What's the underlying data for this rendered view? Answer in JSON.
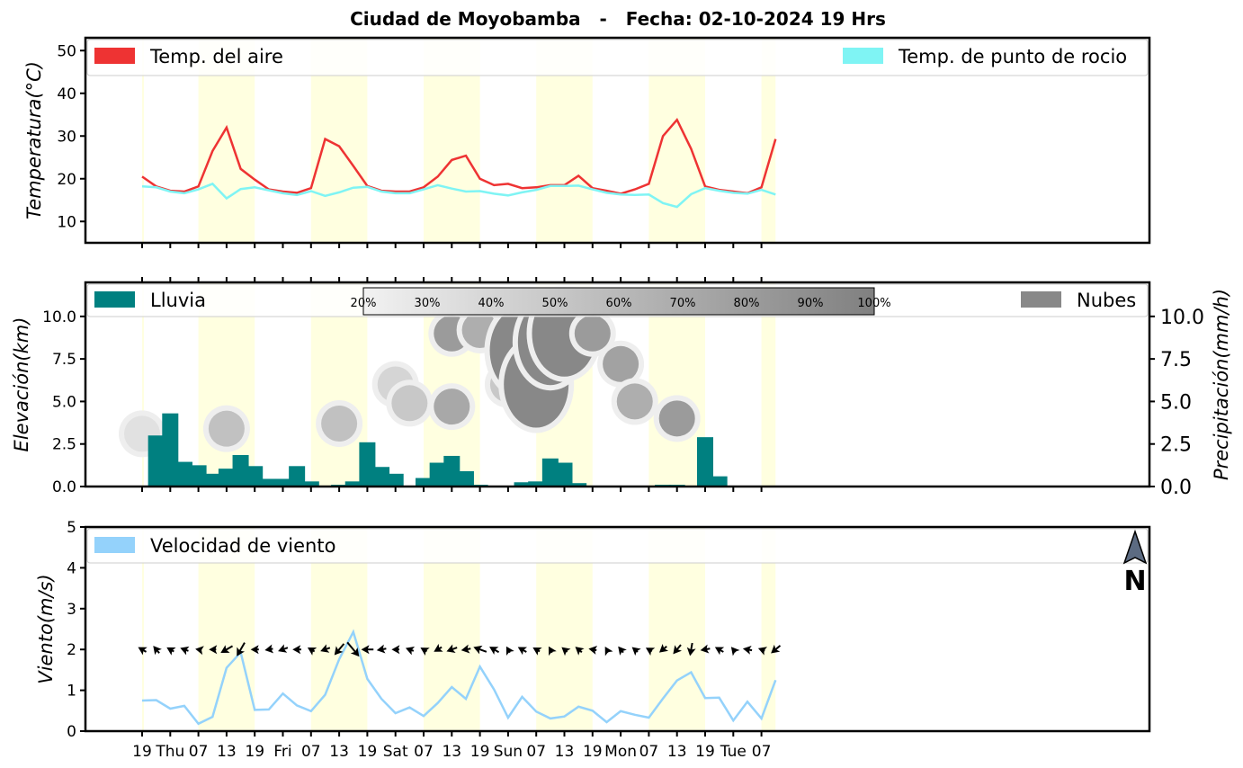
{
  "title": "Ciudad de Moyobamba   -   Fecha: 02-10-2024 19 Hrs",
  "x_tick_labels": [
    "19",
    "Thu",
    "07",
    "13",
    "19",
    "Fri",
    "07",
    "13",
    "19",
    "Sat",
    "07",
    "13",
    "19",
    "Sun",
    "07",
    "13",
    "19",
    "Mon",
    "07",
    "13",
    "19",
    "Tue",
    "07"
  ],
  "colors": {
    "temp_air": "#ee3333",
    "temp_dew": "#7ff4f4",
    "rain": "#008080",
    "clouds": "#888888",
    "wind": "#94d2fb",
    "daylight": "#ffffe0"
  },
  "chart_data": [
    {
      "type": "line",
      "title": "Ciudad de Moyobamba   -   Fecha: 02-10-2024 19 Hrs",
      "ylabel": "Temperatura(°C)",
      "ylim": [
        5,
        53
      ],
      "yticks": [
        "10",
        "20",
        "30",
        "40",
        "50"
      ],
      "x_step_hours": 3,
      "series": [
        {
          "name": "Temp. del aire",
          "values": [
            20.5,
            18.2,
            17.2,
            17.0,
            18.2,
            26.5,
            32.0,
            22.3,
            19.8,
            17.5,
            17.0,
            16.7,
            17.8,
            29.3,
            27.6,
            23.0,
            18.3,
            17.2,
            17.0,
            17.0,
            18.0,
            20.5,
            24.4,
            25.4,
            20.0,
            18.5,
            18.8,
            17.8,
            18.0,
            18.5,
            18.5,
            20.7,
            17.8,
            17.2,
            16.5,
            17.5,
            18.8,
            30.0,
            33.8,
            27.0,
            18.2,
            17.4,
            17.0,
            16.6,
            18.0,
            29.3
          ]
        },
        {
          "name": "Temp. de punto de rocio",
          "values": [
            18.2,
            18.0,
            17.0,
            16.6,
            17.5,
            18.8,
            15.4,
            17.6,
            18.0,
            17.3,
            16.6,
            16.2,
            17.1,
            16.0,
            16.8,
            17.9,
            18.1,
            17.0,
            16.6,
            16.6,
            17.5,
            18.5,
            17.7,
            17.0,
            17.1,
            16.5,
            16.1,
            16.8,
            17.4,
            18.3,
            18.3,
            18.4,
            17.5,
            16.7,
            16.3,
            16.2,
            16.3,
            14.3,
            13.4,
            16.4,
            17.8,
            17.2,
            16.7,
            16.5,
            17.4,
            16.3
          ]
        }
      ]
    },
    {
      "type": "bar",
      "ylabel": "Elevación(km)",
      "ylabel_right": "Precipitación(mm/h)",
      "ylim": [
        0,
        12
      ],
      "yticks": [
        "0.0",
        "2.5",
        "5.0",
        "7.5",
        "10.0"
      ],
      "x_step_hours": 3,
      "series": [
        {
          "name": "Lluvia",
          "values": [
            0,
            3.0,
            4.3,
            1.45,
            1.25,
            0.75,
            1.05,
            1.85,
            1.2,
            0.45,
            0.45,
            1.2,
            0.3,
            0,
            0.1,
            0.3,
            2.6,
            1.15,
            0.75,
            0,
            0.5,
            1.4,
            1.8,
            0.9,
            0.1,
            0,
            0,
            0.25,
            0.3,
            1.65,
            1.4,
            0.2,
            0,
            0,
            0,
            0,
            0,
            0.1,
            0.1,
            0.05,
            2.9,
            0.6,
            0,
            0,
            0,
            0
          ]
        },
        {
          "name": "Nubes",
          "values": []
        }
      ],
      "cloud_colorbar": [
        "20%",
        "30%",
        "40%",
        "50%",
        "60%",
        "70%",
        "80%",
        "90%",
        "100%"
      ],
      "cloud_cover_cells": [
        {
          "t": 0,
          "z": 3.1,
          "pct": 30
        },
        {
          "t": 6,
          "z": 3.4,
          "pct": 55
        },
        {
          "t": 14,
          "z": 3.7,
          "pct": 55
        },
        {
          "t": 18,
          "z": 6.0,
          "pct": 40
        },
        {
          "t": 19,
          "z": 4.9,
          "pct": 50
        },
        {
          "t": 22,
          "z": 9.0,
          "pct": 85
        },
        {
          "t": 22,
          "z": 4.7,
          "pct": 75
        },
        {
          "t": 24,
          "z": 9.2,
          "pct": 70
        },
        {
          "t": 26,
          "z": 6.0,
          "pct": 50
        },
        {
          "t": 27,
          "z": 8.0,
          "pct": 100
        },
        {
          "t": 28,
          "z": 6.0,
          "pct": 100
        },
        {
          "t": 29,
          "z": 8.5,
          "pct": 100
        },
        {
          "t": 30,
          "z": 9.0,
          "pct": 100
        },
        {
          "t": 32,
          "z": 9.0,
          "pct": 85
        },
        {
          "t": 34,
          "z": 7.2,
          "pct": 80
        },
        {
          "t": 35,
          "z": 5.0,
          "pct": 70
        },
        {
          "t": 38,
          "z": 4.0,
          "pct": 85
        }
      ]
    },
    {
      "type": "line",
      "ylabel": "Viento(m/s)",
      "ylim": [
        0,
        5
      ],
      "yticks": [
        "0",
        "1",
        "2",
        "3",
        "4",
        "5"
      ],
      "x_step_hours": 3,
      "series": [
        {
          "name": "Velocidad de viento",
          "values": [
            0.75,
            0.76,
            0.55,
            0.62,
            0.18,
            0.35,
            1.55,
            1.93,
            0.52,
            0.53,
            0.92,
            0.63,
            0.49,
            0.89,
            1.76,
            2.43,
            1.28,
            0.79,
            0.44,
            0.58,
            0.37,
            0.69,
            1.08,
            0.79,
            1.58,
            1.02,
            0.33,
            0.84,
            0.48,
            0.31,
            0.36,
            0.6,
            0.5,
            0.22,
            0.49,
            0.4,
            0.33,
            0.8,
            1.24,
            1.44,
            0.81,
            0.82,
            0.26,
            0.72,
            0.31,
            1.25
          ]
        }
      ],
      "wind_direction_deg": [
        300,
        320,
        300,
        290,
        280,
        270,
        240,
        210,
        270,
        260,
        250,
        270,
        300,
        250,
        220,
        140,
        270,
        260,
        270,
        290,
        300,
        240,
        250,
        260,
        290,
        300,
        330,
        300,
        300,
        330,
        310,
        310,
        280,
        330,
        320,
        310,
        300,
        230,
        220,
        190,
        260,
        300,
        320,
        280,
        290,
        230
      ],
      "north_label": "N"
    }
  ]
}
